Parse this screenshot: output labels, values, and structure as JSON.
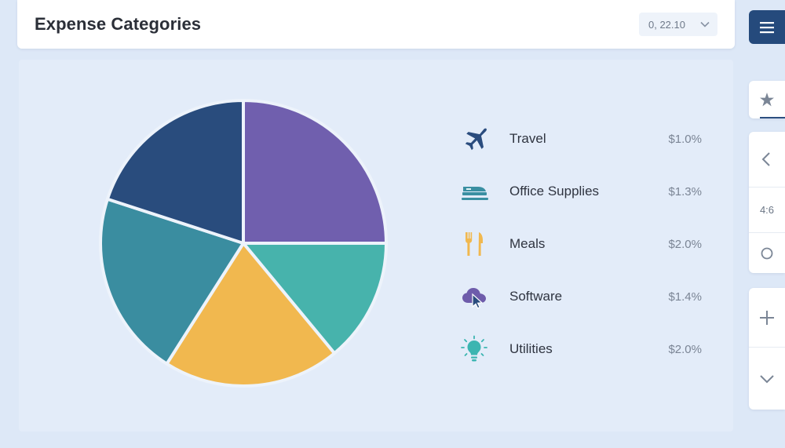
{
  "header": {
    "title": "Expense Categories",
    "period_select": {
      "value": "0, 22.10",
      "icon": "chevron-down-icon"
    }
  },
  "rail": {
    "menu_icon": "menu-icon",
    "items": [
      {
        "icon": "star-icon"
      },
      {
        "icon": "chevron-left-icon"
      },
      {
        "text": "4:6"
      },
      {
        "icon": "circle-icon"
      },
      {
        "icon": "plus-icon"
      },
      {
        "icon": "chevron-down-icon"
      }
    ]
  },
  "chart_data": {
    "type": "pie",
    "start_angle_deg": -90,
    "slices": [
      {
        "label": "",
        "color": "#705fae",
        "value": 25
      },
      {
        "label": "",
        "color": "#47b3ac",
        "value": 14
      },
      {
        "label": "",
        "color": "#f1b84f",
        "value": 20
      },
      {
        "label": "",
        "color": "#3a8da0",
        "value": 21
      },
      {
        "label": "",
        "color": "#294c7d",
        "value": 20
      }
    ],
    "legend": [
      {
        "label": "Travel",
        "value": "$1.0%",
        "icon": "airplane-icon",
        "color": "#2a4c7e"
      },
      {
        "label": "Office Supplies",
        "value": "$1.3%",
        "icon": "stapler-icon",
        "color": "#3a8fa2"
      },
      {
        "label": "Meals",
        "value": "$2.0%",
        "icon": "fork-knife-icon",
        "color": "#f1b84f"
      },
      {
        "label": "Software",
        "value": "$1.4%",
        "icon": "cloud-cursor-icon",
        "color": "#6e5cab"
      },
      {
        "label": "Utilities",
        "value": "$2.0%",
        "icon": "lightbulb-icon",
        "color": "#3bb5b1"
      }
    ]
  }
}
